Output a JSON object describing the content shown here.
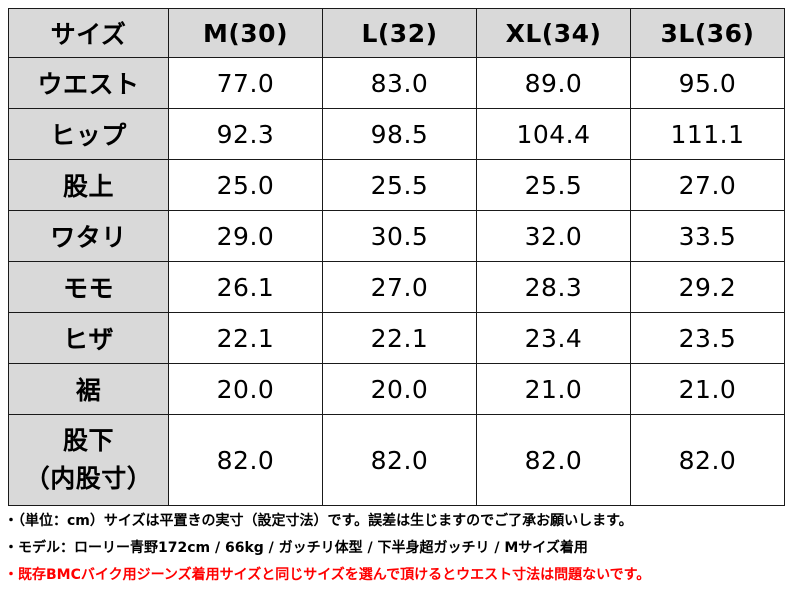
{
  "table": {
    "headers": [
      "サイズ",
      "M(30)",
      "L(32)",
      "XL(34)",
      "3L(36)"
    ],
    "rows": [
      {
        "label": "ウエスト",
        "values": [
          "77.0",
          "83.0",
          "89.0",
          "95.0"
        ]
      },
      {
        "label": "ヒップ",
        "values": [
          "92.3",
          "98.5",
          "104.4",
          "111.1"
        ]
      },
      {
        "label": "股上",
        "values": [
          "25.0",
          "25.5",
          "25.5",
          "27.0"
        ]
      },
      {
        "label": "ワタリ",
        "values": [
          "29.0",
          "30.5",
          "32.0",
          "33.5"
        ]
      },
      {
        "label": "モモ",
        "values": [
          "26.1",
          "27.0",
          "28.3",
          "29.2"
        ]
      },
      {
        "label": "ヒザ",
        "values": [
          "22.1",
          "22.1",
          "23.4",
          "23.5"
        ]
      },
      {
        "label": "裾",
        "values": [
          "20.0",
          "20.0",
          "21.0",
          "21.0"
        ]
      },
      {
        "label": "股下",
        "label_sub": "（内股寸）",
        "values": [
          "82.0",
          "82.0",
          "82.0",
          "82.0"
        ]
      }
    ]
  },
  "notes": [
    "・（単位：cm）サイズは平置きの実寸（設定寸法）です。誤差は生じますのでご了承お願いします。",
    "・モデル：ローリー青野172cm / 66kg / ガッチリ体型 / 下半身超ガッチリ / Mサイズ着用",
    "・既存BMCバイク用ジーンズ着用サイズと同じサイズを選んで頂けるとウエスト寸法は問題ないです。"
  ],
  "colors": {
    "header_bg": "#d9d9d9",
    "border": "#1a1a1a",
    "warning_text": "#ff0000"
  }
}
